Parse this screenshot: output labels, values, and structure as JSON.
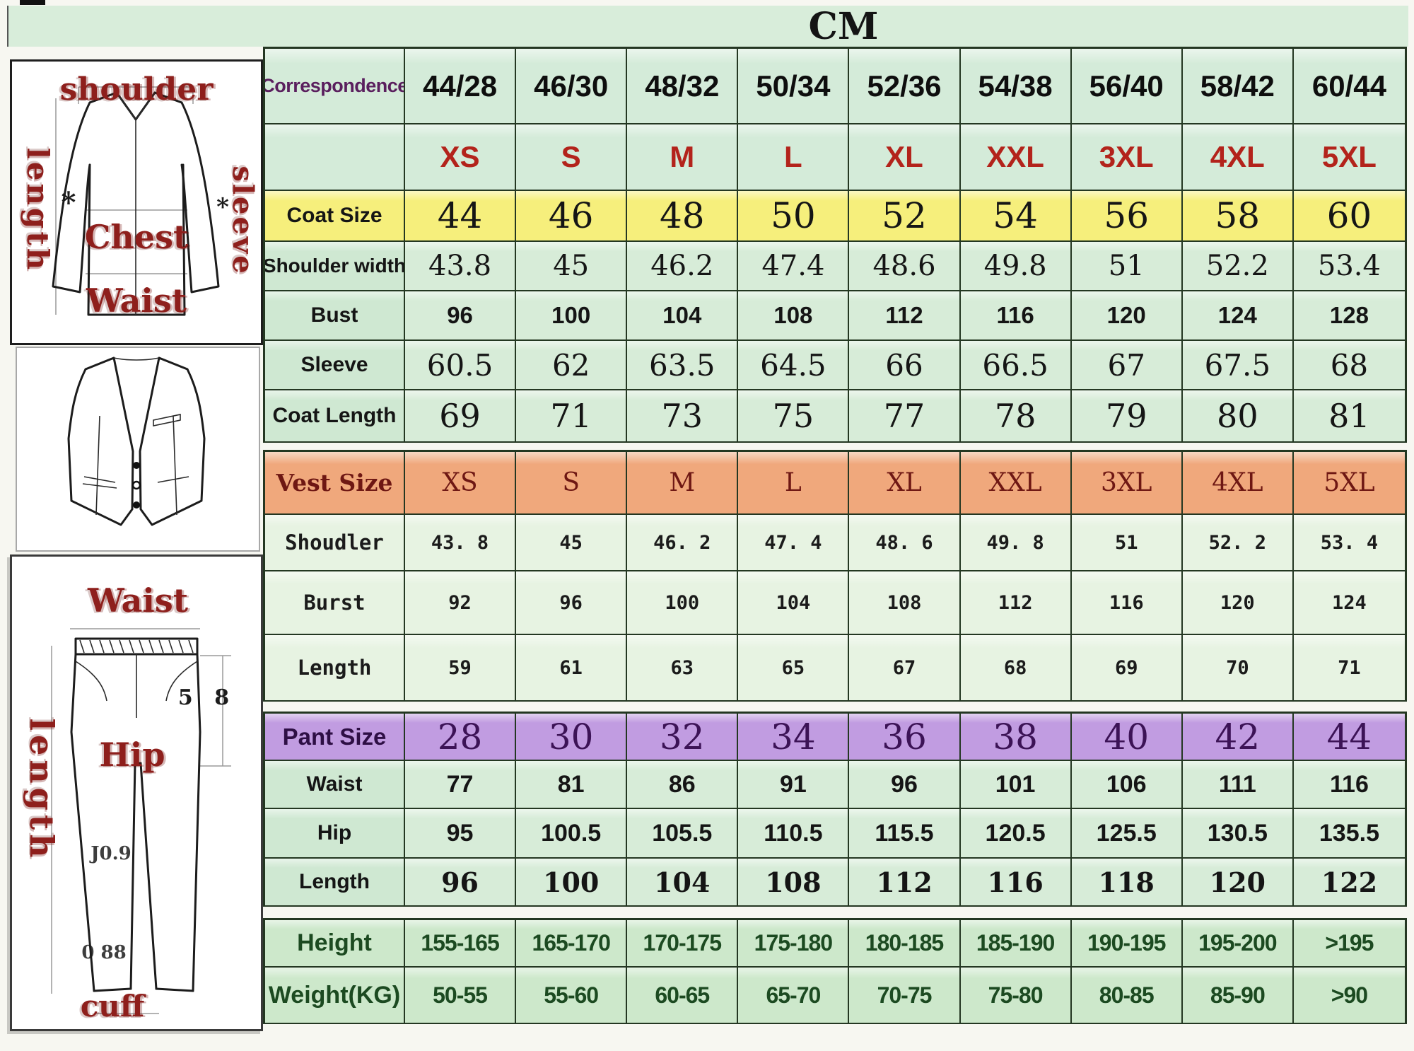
{
  "title": "CM",
  "colors": {
    "table_green": "#d2e9d6",
    "coat_size_row": "#f6ef7c",
    "vest_size_row": "#f0a87c",
    "pant_size_row": "#c19ce1",
    "size_letter_red": "#b3231b",
    "correspondence_purple": "#5a1f5e",
    "height_weight_green": "#1c4a21",
    "diagram_label_red": "#8e1f1c"
  },
  "diagrams": {
    "coat": {
      "shoulder": "shoulder",
      "length": "length",
      "sleeve": "sleeve",
      "chest": "Chest",
      "waist": "Waist"
    },
    "pant": {
      "waist": "Waist",
      "length": "length",
      "hip": "Hip",
      "cuff": "cuff",
      "marks": [
        "5 8",
        "J0.9",
        "0 88"
      ]
    }
  },
  "table": {
    "rows": [
      {
        "id": "correspondence",
        "label": "Correspondence",
        "values": [
          "44/28",
          "46/30",
          "48/32",
          "50/34",
          "52/36",
          "54/38",
          "56/40",
          "58/42",
          "60/44"
        ]
      },
      {
        "id": "size-letters",
        "label": "",
        "values": [
          "XS",
          "S",
          "M",
          "L",
          "XL",
          "XXL",
          "3XL",
          "4XL",
          "5XL"
        ]
      },
      {
        "id": "coat-size",
        "label": "Coat Size",
        "values": [
          "44",
          "46",
          "48",
          "50",
          "52",
          "54",
          "56",
          "58",
          "60"
        ]
      },
      {
        "id": "shoulder-width",
        "label": "Shoulder width",
        "values": [
          "43.8",
          "45",
          "46.2",
          "47.4",
          "48.6",
          "49.8",
          "51",
          "52.2",
          "53.4"
        ]
      },
      {
        "id": "bust",
        "label": "Bust",
        "values": [
          "96",
          "100",
          "104",
          "108",
          "112",
          "116",
          "120",
          "124",
          "128"
        ]
      },
      {
        "id": "sleeve",
        "label": "Sleeve",
        "values": [
          "60.5",
          "62",
          "63.5",
          "64.5",
          "66",
          "66.5",
          "67",
          "67.5",
          "68"
        ]
      },
      {
        "id": "coat-length",
        "label": "Coat Length",
        "values": [
          "69",
          "71",
          "73",
          "75",
          "77",
          "78",
          "79",
          "80",
          "81"
        ]
      },
      {
        "id": "vest-size",
        "label": "Vest Size",
        "values": [
          "XS",
          "S",
          "M",
          "L",
          "XL",
          "XXL",
          "3XL",
          "4XL",
          "5XL"
        ]
      },
      {
        "id": "vest-shoulder",
        "label": "Shoudler",
        "values": [
          "43. 8",
          "45",
          "46. 2",
          "47. 4",
          "48. 6",
          "49. 8",
          "51",
          "52. 2",
          "53. 4"
        ]
      },
      {
        "id": "vest-bust",
        "label": "Burst",
        "values": [
          "92",
          "96",
          "100",
          "104",
          "108",
          "112",
          "116",
          "120",
          "124"
        ]
      },
      {
        "id": "vest-length",
        "label": "Length",
        "values": [
          "59",
          "61",
          "63",
          "65",
          "67",
          "68",
          "69",
          "70",
          "71"
        ]
      },
      {
        "id": "pant-size",
        "label": "Pant Size",
        "values": [
          "28",
          "30",
          "32",
          "34",
          "36",
          "38",
          "40",
          "42",
          "44"
        ]
      },
      {
        "id": "pant-waist",
        "label": "Waist",
        "values": [
          "77",
          "81",
          "86",
          "91",
          "96",
          "101",
          "106",
          "111",
          "116"
        ]
      },
      {
        "id": "pant-hip",
        "label": "Hip",
        "values": [
          "95",
          "100.5",
          "105.5",
          "110.5",
          "115.5",
          "120.5",
          "125.5",
          "130.5",
          "135.5"
        ]
      },
      {
        "id": "pant-length",
        "label": "Length",
        "values": [
          "96",
          "100",
          "104",
          "108",
          "112",
          "116",
          "118",
          "120",
          "122"
        ]
      },
      {
        "id": "height",
        "label": "Height",
        "values": [
          "155-165",
          "165-170",
          "170-175",
          "175-180",
          "180-185",
          "185-190",
          "190-195",
          "195-200",
          ">195"
        ]
      },
      {
        "id": "weight",
        "label": "Weight(KG)",
        "values": [
          "50-55",
          "55-60",
          "60-65",
          "65-70",
          "70-75",
          "75-80",
          "80-85",
          "85-90",
          ">90"
        ]
      }
    ]
  }
}
